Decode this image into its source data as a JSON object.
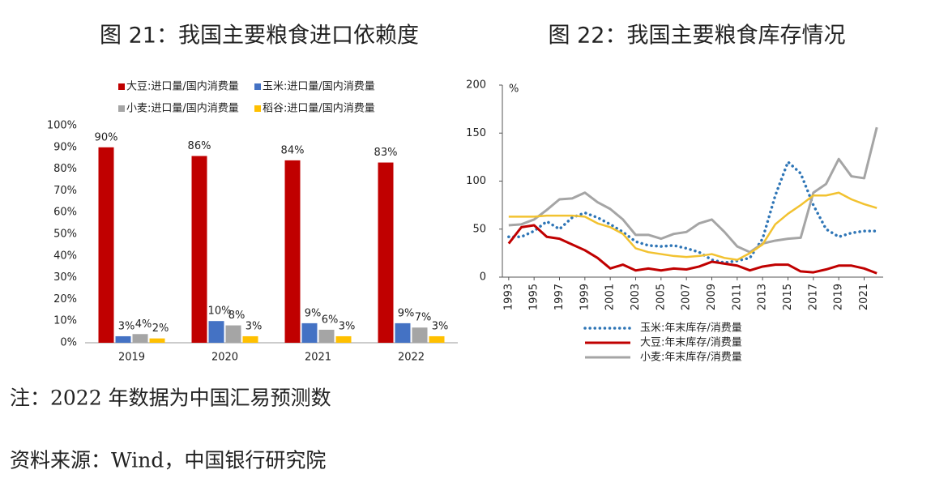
{
  "chart_data": [
    {
      "type": "bar",
      "title": "图 21：我国主要粮食进口依赖度",
      "categories": [
        "2019",
        "2020",
        "2021",
        "2022"
      ],
      "series": [
        {
          "name": "大豆:进口量/国内消费量",
          "color": "#c00000",
          "values": [
            90,
            86,
            84,
            83
          ],
          "value_labels": [
            "90%",
            "86%",
            "84%",
            "83%"
          ]
        },
        {
          "name": "玉米:进口量/国内消费量",
          "color": "#4472c4",
          "values": [
            3,
            10,
            9,
            9
          ],
          "value_labels": [
            "3%",
            "10%",
            "9%",
            "9%"
          ]
        },
        {
          "name": "小麦:进口量/国内消费量",
          "color": "#a5a5a5",
          "values": [
            4,
            8,
            6,
            7
          ],
          "value_labels": [
            "4%",
            "8%",
            "6%",
            "7%"
          ]
        },
        {
          "name": "稻谷:进口量/国内消费量",
          "color": "#ffc000",
          "values": [
            2,
            3,
            3,
            3
          ],
          "value_labels": [
            "2%",
            "3%",
            "3%",
            "3%"
          ]
        }
      ],
      "ylim": [
        0,
        100
      ],
      "yticks": [
        {
          "value": 0,
          "label": "0%"
        },
        {
          "value": 10,
          "label": "10%"
        },
        {
          "value": 20,
          "label": "20%"
        },
        {
          "value": 30,
          "label": "30%"
        },
        {
          "value": 40,
          "label": "40%"
        },
        {
          "value": 50,
          "label": "50%"
        },
        {
          "value": 60,
          "label": "60%"
        },
        {
          "value": 70,
          "label": "70%"
        },
        {
          "value": 80,
          "label": "80%"
        },
        {
          "value": 90,
          "label": "90%"
        },
        {
          "value": 100,
          "label": "100%"
        }
      ],
      "grid": false,
      "legend": "top"
    },
    {
      "type": "line",
      "title": "图 22：我国主要粮食库存情况",
      "y_unit": "%",
      "x": [
        1993,
        1994,
        1995,
        1996,
        1997,
        1998,
        1999,
        2000,
        2001,
        2002,
        2003,
        2004,
        2005,
        2006,
        2007,
        2008,
        2009,
        2010,
        2011,
        2012,
        2013,
        2014,
        2015,
        2016,
        2017,
        2018,
        2019,
        2020,
        2021,
        2022
      ],
      "series": [
        {
          "name": "玉米:年末库存/消费量",
          "color": "#2e75b6",
          "style": "dotted",
          "values": [
            42,
            42,
            48,
            58,
            50,
            62,
            67,
            62,
            55,
            47,
            37,
            33,
            32,
            33,
            30,
            26,
            18,
            15,
            17,
            20,
            40,
            85,
            120,
            108,
            75,
            50,
            42,
            46,
            48,
            48
          ]
        },
        {
          "name": "大豆:年末库存/消费量",
          "color": "#c00000",
          "style": "solid",
          "values": [
            35,
            52,
            54,
            42,
            40,
            34,
            28,
            20,
            9,
            13,
            7,
            9,
            7,
            9,
            8,
            11,
            16,
            14,
            12,
            7,
            11,
            13,
            13,
            6,
            5,
            8,
            12,
            12,
            9,
            4
          ]
        },
        {
          "name": "小麦:年末库存/消费量",
          "color": "#a5a5a5",
          "style": "solid",
          "values": [
            54,
            55,
            60,
            70,
            81,
            82,
            88,
            78,
            71,
            60,
            44,
            44,
            40,
            45,
            47,
            56,
            60,
            47,
            32,
            26,
            35,
            38,
            40,
            41,
            88,
            97,
            123,
            105,
            103,
            156
          ]
        },
        {
          "color": "#f2c230",
          "style": "double",
          "values": [
            63,
            63,
            63,
            64,
            64,
            64,
            63,
            56,
            52,
            45,
            30,
            26,
            24,
            22,
            21,
            22,
            24,
            20,
            18,
            25,
            34,
            55,
            66,
            75,
            85,
            85,
            88,
            81,
            76,
            72
          ]
        }
      ],
      "xlim": [
        1992.5,
        2022.5
      ],
      "xticks": [
        1993,
        1995,
        1997,
        1999,
        2001,
        2003,
        2005,
        2007,
        2009,
        2011,
        2013,
        2015,
        2017,
        2019,
        2021
      ],
      "ylim": [
        0,
        200
      ],
      "yticks": [
        0,
        50,
        100,
        150,
        200
      ],
      "grid": false,
      "legend": "bottom"
    }
  ],
  "note": "注：2022 年数据为中国汇易预测数",
  "source": "资料来源：Wind，中国银行研究院"
}
